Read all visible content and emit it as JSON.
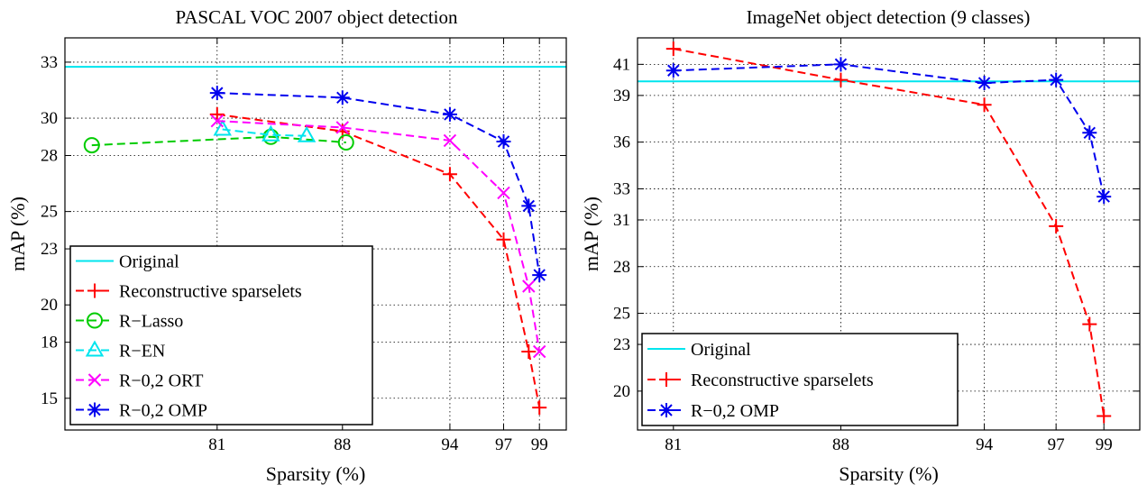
{
  "chart_data": [
    {
      "type": "line",
      "title": "PASCAL VOC 2007 object detection",
      "xlabel": "Sparsity (%)",
      "ylabel": "mAP (%)",
      "xlim": [
        72.5,
        100.5
      ],
      "ylim": [
        13.3,
        34.3
      ],
      "xticks": [
        81,
        88,
        94,
        97,
        99
      ],
      "yticks": [
        15,
        18,
        20,
        23,
        25,
        28,
        30,
        33
      ],
      "grid": true,
      "legend_position": "bottom-left",
      "series": [
        {
          "name": "Original",
          "color": "#00e5ee",
          "style": "solid",
          "marker": "none",
          "x": [
            72.5,
            100.5
          ],
          "y": [
            32.75,
            32.75
          ]
        },
        {
          "name": "Reconstructive sparselets",
          "color": "#ff0000",
          "style": "dashed",
          "marker": "plus",
          "x": [
            81,
            88,
            94,
            97,
            98.4,
            99
          ],
          "y": [
            30.2,
            29.3,
            27.0,
            23.5,
            17.5,
            14.5
          ]
        },
        {
          "name": "R−Lasso",
          "color": "#00cc00",
          "style": "dashed",
          "marker": "circle",
          "x": [
            74,
            84,
            88.2
          ],
          "y": [
            28.55,
            29.0,
            28.7
          ]
        },
        {
          "name": "R−EN",
          "color": "#00e5ee",
          "style": "dashed",
          "marker": "triangle",
          "x": [
            81.3,
            84,
            86
          ],
          "y": [
            29.4,
            29.1,
            29.05
          ]
        },
        {
          "name": "R−0,2 ORT",
          "color": "#ff00ff",
          "style": "dashed",
          "marker": "x",
          "x": [
            81,
            88,
            94,
            97,
            98.4,
            99
          ],
          "y": [
            29.85,
            29.5,
            28.8,
            26.0,
            21.0,
            17.5
          ]
        },
        {
          "name": "R−0,2 OMP",
          "color": "#0000ee",
          "style": "dashed",
          "marker": "asterisk",
          "x": [
            81,
            88,
            94,
            97,
            98.4,
            99
          ],
          "y": [
            31.35,
            31.1,
            30.2,
            28.75,
            25.3,
            21.6
          ]
        }
      ]
    },
    {
      "type": "line",
      "title": "ImageNet object detection (9 classes)",
      "xlabel": "Sparsity (%)",
      "ylabel": "mAP (%)",
      "xlim": [
        79.5,
        100.5
      ],
      "ylim": [
        17.5,
        42.7
      ],
      "xticks": [
        81,
        88,
        94,
        97,
        99
      ],
      "yticks": [
        20,
        23,
        25,
        28,
        31,
        33,
        36,
        39,
        41
      ],
      "grid": true,
      "legend_position": "bottom-left",
      "series": [
        {
          "name": "Original",
          "color": "#00e5ee",
          "style": "solid",
          "marker": "none",
          "x": [
            79.5,
            100.5
          ],
          "y": [
            39.9,
            39.9
          ]
        },
        {
          "name": "Reconstructive sparselets",
          "color": "#ff0000",
          "style": "dashed",
          "marker": "plus",
          "x": [
            81,
            88,
            94,
            97,
            98.4,
            99
          ],
          "y": [
            42.0,
            40.0,
            38.4,
            30.6,
            24.3,
            18.4
          ]
        },
        {
          "name": "R−0,2 OMP",
          "color": "#0000ee",
          "style": "dashed",
          "marker": "asterisk",
          "x": [
            81,
            88,
            94,
            97,
            98.4,
            99
          ],
          "y": [
            40.6,
            41.0,
            39.8,
            40.0,
            36.6,
            32.5
          ]
        }
      ]
    }
  ]
}
